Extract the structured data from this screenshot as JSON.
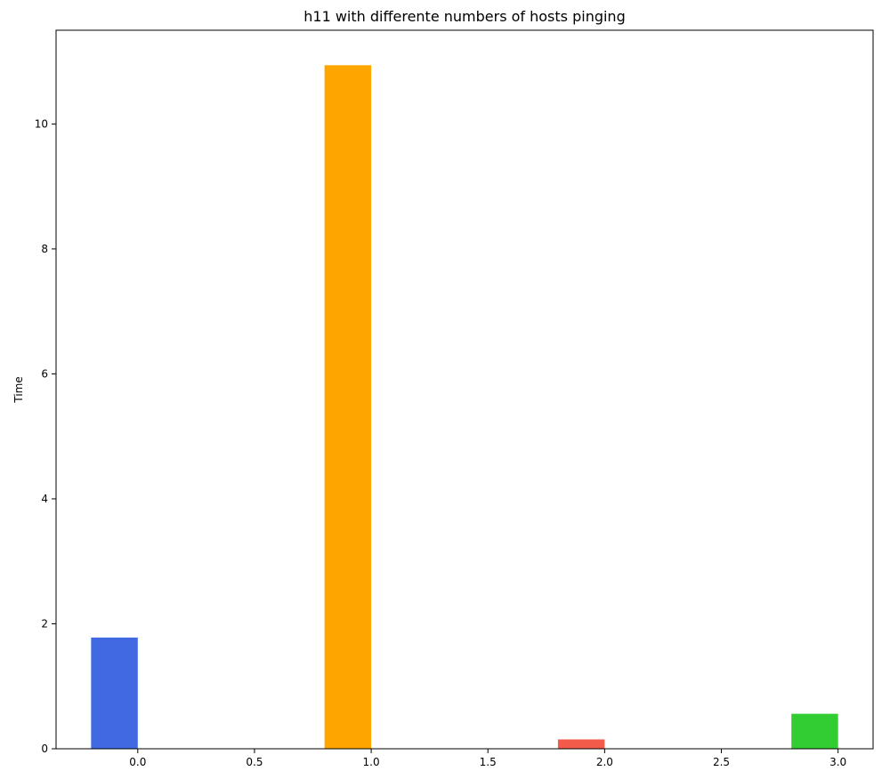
{
  "chart_data": {
    "type": "bar",
    "title": "h11 with differente numbers of hosts pinging",
    "xlabel": "",
    "ylabel": "Time",
    "xlim": [
      -0.35,
      3.15
    ],
    "ylim": [
      0,
      11.5
    ],
    "xticks": [
      0.0,
      0.5,
      1.0,
      1.5,
      2.0,
      2.5,
      3.0
    ],
    "xtick_labels": [
      "0.0",
      "0.5",
      "1.0",
      "1.5",
      "2.0",
      "2.5",
      "3.0"
    ],
    "yticks": [
      0,
      2,
      4,
      6,
      8,
      10
    ],
    "ytick_labels": [
      "0",
      "2",
      "4",
      "6",
      "8",
      "10"
    ],
    "bar_width": 0.2,
    "bars": [
      {
        "x": -0.1,
        "value": 1.78,
        "color": "#4169e1"
      },
      {
        "x": 0.9,
        "value": 10.94,
        "color": "#ffa500"
      },
      {
        "x": 1.9,
        "value": 0.15,
        "color": "#f25b4a"
      },
      {
        "x": 2.9,
        "value": 0.56,
        "color": "#32cd32"
      }
    ],
    "grid": false,
    "legend": "none"
  }
}
